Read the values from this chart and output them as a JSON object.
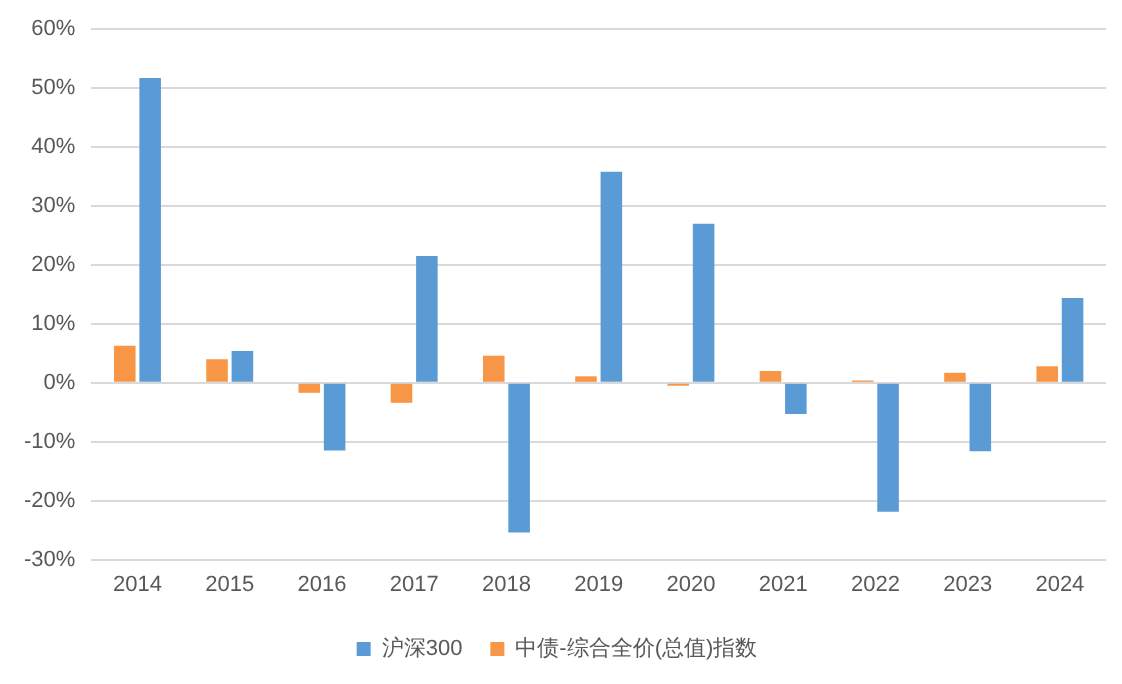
{
  "chart_data": {
    "type": "bar",
    "categories": [
      "2014",
      "2015",
      "2016",
      "2017",
      "2018",
      "2019",
      "2020",
      "2021",
      "2022",
      "2023",
      "2024"
    ],
    "series": [
      {
        "name": "中债-综合全价(总值)指数",
        "color": "#f79646",
        "values": [
          6.3,
          4.0,
          -1.7,
          -3.4,
          4.6,
          1.1,
          -0.5,
          2.0,
          0.4,
          1.7,
          2.8
        ]
      },
      {
        "name": "沪深300",
        "color": "#5b9bd5",
        "values": [
          51.7,
          5.4,
          -11.5,
          21.5,
          -25.4,
          35.8,
          27.0,
          -5.3,
          -21.9,
          -11.6,
          14.4
        ]
      }
    ],
    "ylim": [
      -30,
      60
    ],
    "yticks": [
      {
        "value": -30,
        "label": "-30%"
      },
      {
        "value": -20,
        "label": "-20%"
      },
      {
        "value": -10,
        "label": "-10%"
      },
      {
        "value": 0,
        "label": "0%"
      },
      {
        "value": 10,
        "label": "10%"
      },
      {
        "value": 20,
        "label": "20%"
      },
      {
        "value": 30,
        "label": "30%"
      },
      {
        "value": 40,
        "label": "40%"
      },
      {
        "value": 50,
        "label": "50%"
      },
      {
        "value": 60,
        "label": "60%"
      }
    ],
    "grid": "y",
    "legend": "bottom"
  }
}
